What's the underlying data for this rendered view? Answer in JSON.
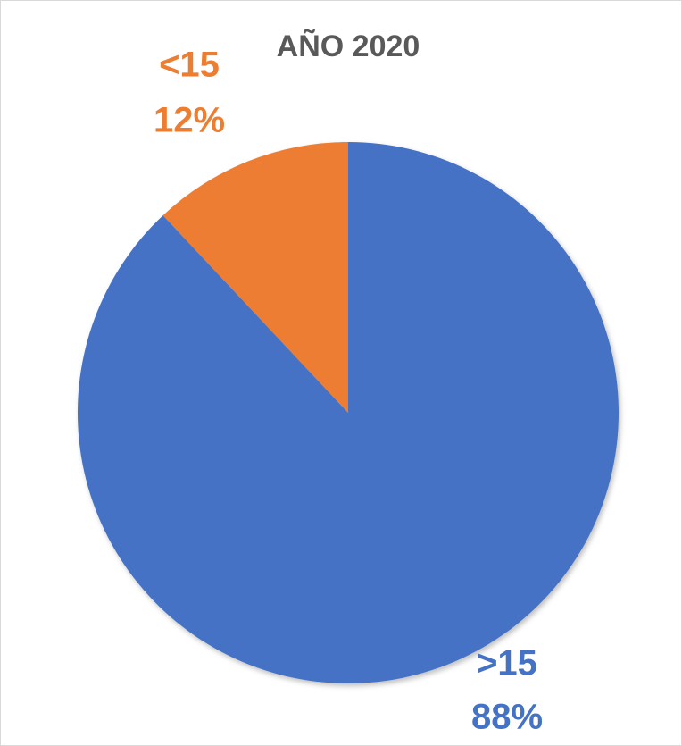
{
  "chart_data": {
    "type": "pie",
    "title": "AÑO 2020",
    "categories": [
      ">15",
      "<15"
    ],
    "values": [
      88,
      12
    ],
    "value_labels": [
      "88%",
      "12%"
    ],
    "colors": [
      "#4472c4",
      "#ed7d31"
    ]
  }
}
